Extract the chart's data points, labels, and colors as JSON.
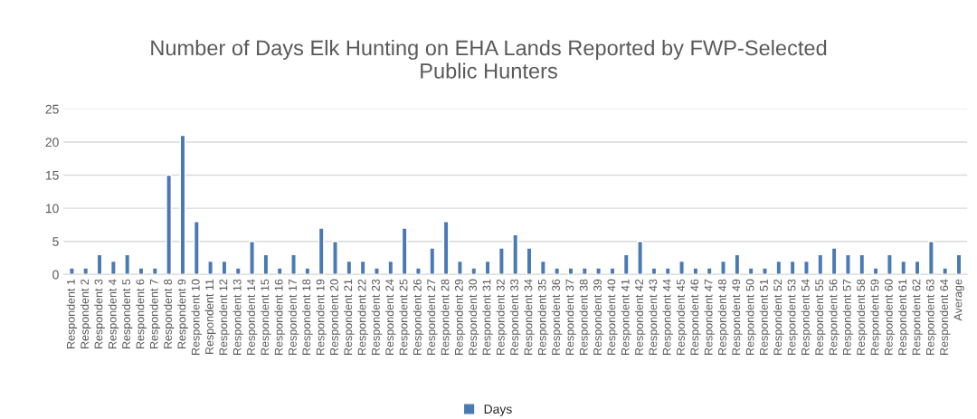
{
  "chart_data": {
    "type": "bar",
    "title": "Number of Days Elk Hunting on EHA Lands Reported by FWP-Selected\nPublic Hunters",
    "categories": [
      "Respondent 1",
      "Respondent 2",
      "Respondent 3",
      "Respondent 4",
      "Respondent 5",
      "Respondent 6",
      "Respondent 7",
      "Respondent 8",
      "Respondent 9",
      "Respondent 10",
      "Respondent 11",
      "Respondent 12",
      "Respondent 13",
      "Respondent 14",
      "Respondent 15",
      "Respondent 16",
      "Respondent 17",
      "Respondent 18",
      "Respondent 19",
      "Respondent 20",
      "Respondent 21",
      "Respondent 22",
      "Respondent 23",
      "Respondent 24",
      "Respondent 25",
      "Respondent 26",
      "Respondent 27",
      "Respondent 28",
      "Respondent 29",
      "Respondent 30",
      "Respondent 31",
      "Respondent 32",
      "Respondent 33",
      "Respondent 34",
      "Respondent 35",
      "Respondent 36",
      "Respondent 37",
      "Respondent 38",
      "Respondent 39",
      "Respondent 40",
      "Respondent 41",
      "Respondent 42",
      "Respondent 43",
      "Respondent 44",
      "Respondent 45",
      "Respondent 46",
      "Respondent 47",
      "Respondent 48",
      "Respondent 49",
      "Respondent 50",
      "Respondent 51",
      "Respondent 52",
      "Respondent 53",
      "Respondent 54",
      "Respondent 55",
      "Respondent 56",
      "Respondent 57",
      "Respondent 58",
      "Respondent 59",
      "Respondent 60",
      "Respondent 61",
      "Respondent 62",
      "Respondent 63",
      "Respondent 64",
      "Average"
    ],
    "series": [
      {
        "name": "Days",
        "color": "#4a7ab5",
        "values": [
          1,
          1,
          3,
          2,
          3,
          1,
          1,
          15,
          21,
          8,
          2,
          2,
          1,
          5,
          3,
          1,
          3,
          1,
          7,
          5,
          2,
          2,
          1,
          2,
          7,
          1,
          4,
          8,
          2,
          1,
          2,
          4,
          6,
          4,
          2,
          1,
          1,
          1,
          1,
          1,
          3,
          5,
          1,
          1,
          2,
          1,
          1,
          2,
          3,
          1,
          1,
          2,
          2,
          2,
          3,
          4,
          3,
          3,
          1,
          3,
          2,
          2,
          5,
          1,
          3
        ]
      }
    ],
    "ylim": [
      0,
      25
    ],
    "yticks": [
      0,
      5,
      10,
      15,
      20,
      25
    ],
    "grid": "y",
    "legend": "bottom"
  }
}
